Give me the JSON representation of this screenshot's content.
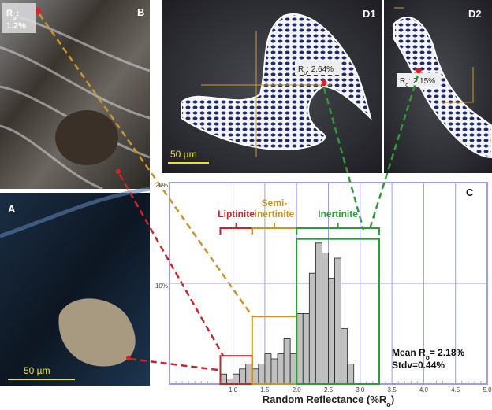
{
  "chart_data": {
    "type": "histogram",
    "panel_labels": [
      "A",
      "B",
      "C",
      "D1",
      "D2"
    ],
    "ro_labels": [
      {
        "main": "R",
        "sub": "o",
        "rest": ":",
        "line2": "1.2%"
      },
      {
        "main": "R",
        "sub": "o",
        "rest": ": 2.64%"
      },
      {
        "main": "R",
        "sub": "o",
        "rest": ": 2.15%"
      }
    ],
    "scale_bars": [
      "50 µm",
      "50 µm"
    ],
    "x_label": {
      "main": "Random Reflectance (%R",
      "sub": "o",
      "end": ")"
    },
    "stats": [
      {
        "main": "Mean R",
        "sub": "o",
        "rest": "= 2.18%"
      },
      {
        "main": "Stdv=0.44%"
      }
    ],
    "bins": [
      0.8,
      0.9,
      1.0,
      1.1,
      1.2,
      1.3,
      1.4,
      1.5,
      1.6,
      1.7,
      1.8,
      1.9,
      2.0,
      2.1,
      2.2,
      2.3,
      2.4,
      2.5,
      2.6,
      2.7,
      2.8,
      2.9
    ],
    "values": [
      1.0,
      0.5,
      1.0,
      1.5,
      2.0,
      1.5,
      2.0,
      3.0,
      2.5,
      3.0,
      4.5,
      3.0,
      7.0,
      7.0,
      11.0,
      14.0,
      13.0,
      10.5,
      12.5,
      5.5,
      2.0
    ],
    "color": "#c0c0c0",
    "groups": [
      {
        "name": [
          "Liptinite"
        ],
        "color": "#c0282d",
        "range": [
          0.8,
          1.3
        ],
        "top": 2.8
      },
      {
        "name": [
          "Semi-",
          "inertinite"
        ],
        "color": "#c8952a",
        "range": [
          1.3,
          2.0
        ],
        "top": 6.7
      },
      {
        "name": [
          "Inertinite"
        ],
        "color": "#2e9a3a",
        "range": [
          2.0,
          3.3
        ],
        "top": 14.4
      }
    ],
    "xlim": [
      0,
      5
    ],
    "ylim": [
      0,
      20
    ],
    "xticks": [
      {
        "value": 1,
        "label": "1.0"
      },
      {
        "value": 1.5,
        "label": "1.5"
      },
      {
        "value": 2,
        "label": "2.0"
      },
      {
        "value": 2.5,
        "label": "2.5"
      },
      {
        "value": 3,
        "label": "3.0"
      },
      {
        "value": 3.5,
        "label": "3.5"
      },
      {
        "value": 4,
        "label": "4.0"
      },
      {
        "value": 4.5,
        "label": "4.5"
      },
      {
        "value": 5,
        "label": "5.0"
      }
    ],
    "yticks": [
      {
        "value": 10,
        "label": "10%"
      },
      {
        "value": 20,
        "label": "20%"
      }
    ],
    "grid": true
  }
}
